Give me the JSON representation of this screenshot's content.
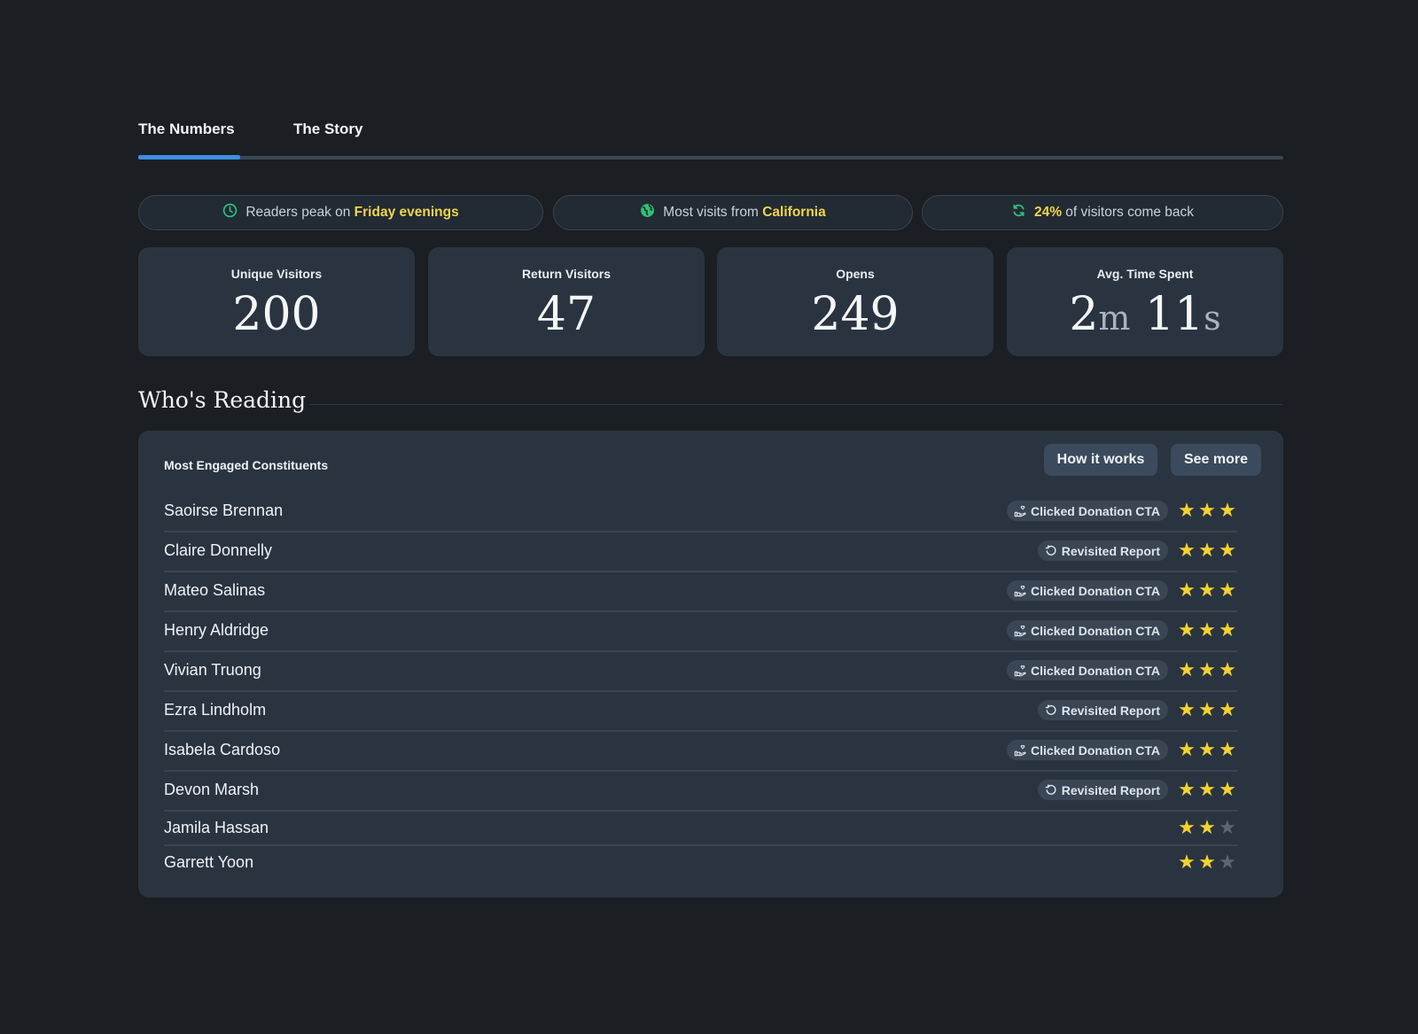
{
  "tabs": [
    {
      "label": "The Numbers",
      "active": true
    },
    {
      "label": "The Story",
      "active": false
    }
  ],
  "insights": [
    {
      "icon": "clock-icon",
      "text_before": "Readers peak on ",
      "highlight": "Friday evenings",
      "text_after": ""
    },
    {
      "icon": "globe-icon",
      "text_before": "Most visits from ",
      "highlight": "California",
      "text_after": ""
    },
    {
      "icon": "refresh-icon",
      "text_before": "",
      "highlight": "24%",
      "text_after": " of visitors come back"
    }
  ],
  "stats": [
    {
      "label": "Unique Visitors",
      "value": "200"
    },
    {
      "label": "Return Visitors",
      "value": "47"
    },
    {
      "label": "Opens",
      "value": "249"
    },
    {
      "label": "Avg. Time Spent",
      "minutes": "2",
      "minutes_unit": "m",
      "seconds": "11",
      "seconds_unit": "s"
    }
  ],
  "section": {
    "title": "Who's Reading"
  },
  "panel": {
    "title": "Most Engaged Constituents",
    "how_it_works_label": "How it works",
    "see_more_label": "See more"
  },
  "constituents": [
    {
      "name": "Saoirse Brennan",
      "badge": "Clicked Donation CTA",
      "badge_icon": "donation-hand-icon",
      "stars": 3
    },
    {
      "name": "Claire Donnelly",
      "badge": "Revisited Report",
      "badge_icon": "revisit-icon",
      "stars": 3
    },
    {
      "name": "Mateo Salinas",
      "badge": "Clicked Donation CTA",
      "badge_icon": "donation-hand-icon",
      "stars": 3
    },
    {
      "name": "Henry Aldridge",
      "badge": "Clicked Donation CTA",
      "badge_icon": "donation-hand-icon",
      "stars": 3
    },
    {
      "name": "Vivian Truong",
      "badge": "Clicked Donation CTA",
      "badge_icon": "donation-hand-icon",
      "stars": 3
    },
    {
      "name": "Ezra Lindholm",
      "badge": "Revisited Report",
      "badge_icon": "revisit-icon",
      "stars": 3
    },
    {
      "name": "Isabela Cardoso",
      "badge": "Clicked Donation CTA",
      "badge_icon": "donation-hand-icon",
      "stars": 3
    },
    {
      "name": "Devon Marsh",
      "badge": "Revisited Report",
      "badge_icon": "revisit-icon",
      "stars": 3
    },
    {
      "name": "Jamila Hassan",
      "badge": "",
      "badge_icon": "",
      "stars": 2
    },
    {
      "name": "Garrett Yoon",
      "badge": "",
      "badge_icon": "",
      "stars": 2
    }
  ],
  "max_stars": 3,
  "colors": {
    "accent": "#3d8fe0",
    "highlight": "#f1d54a",
    "star_on": "#f4d22f",
    "star_off": "#5b6573",
    "icon_green": "#2fbf7a"
  }
}
